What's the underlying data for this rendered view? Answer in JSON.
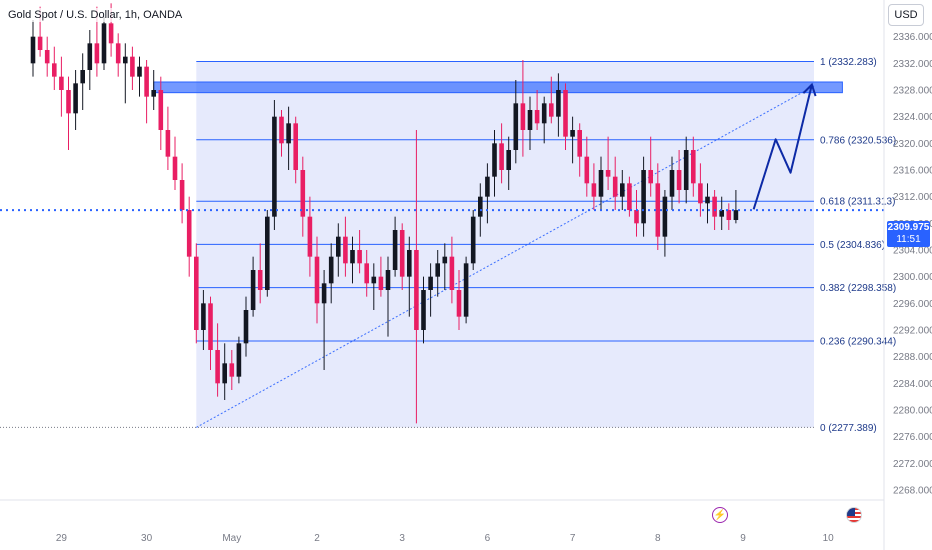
{
  "header": {
    "symbol_title": "Gold Spot / U.S. Dollar, 1h, OANDA"
  },
  "currency_button": {
    "label": "USD"
  },
  "last_price": {
    "price": "2309.975",
    "countdown": "11:51",
    "value": 2309.975
  },
  "icons": {
    "event_bolt": "lightning-bolt-icon",
    "event_flag": "us-flag-icon"
  },
  "colors": {
    "up": "#131722",
    "down": "#e91e63",
    "fib_line": "#2962ff",
    "fib_fill": "#dde3fb",
    "zone": "#2962ff",
    "projection": "#0d2aa6"
  },
  "chart_data": {
    "type": "candlestick",
    "title": "Gold Spot / U.S. Dollar, 1h, OANDA",
    "xlabel": "",
    "ylabel": "",
    "ylim": [
      2266.5,
      2341.5
    ],
    "y_ticks": [
      2268,
      2272,
      2276,
      2280,
      2284,
      2288,
      2292,
      2296,
      2300,
      2304,
      2308,
      2312,
      2316,
      2320,
      2324,
      2328,
      2332,
      2336
    ],
    "x_ticks": [
      {
        "label": "29",
        "index": 4
      },
      {
        "label": "30",
        "index": 16
      },
      {
        "label": "May",
        "index": 28
      },
      {
        "label": "2",
        "index": 40
      },
      {
        "label": "3",
        "index": 52
      },
      {
        "label": "6",
        "index": 64
      },
      {
        "label": "7",
        "index": 76
      },
      {
        "label": "8",
        "index": 88
      },
      {
        "label": "9",
        "index": 100
      },
      {
        "label": "10",
        "index": 112
      }
    ],
    "grid": false,
    "fibonacci": {
      "start_index": 23,
      "end_index": 110,
      "levels": [
        {
          "ratio": "1",
          "price": 2332.283
        },
        {
          "ratio": "0.786",
          "price": 2320.536
        },
        {
          "ratio": "0.618",
          "price": 2311.313
        },
        {
          "ratio": "0.5",
          "price": 2304.836
        },
        {
          "ratio": "0.382",
          "price": 2298.358
        },
        {
          "ratio": "0.236",
          "price": 2290.344
        },
        {
          "ratio": "0",
          "price": 2277.389
        }
      ]
    },
    "resistance_zone": {
      "top": 2329.2,
      "bottom": 2327.6,
      "start_index": 17,
      "end_index": 114
    },
    "trendline": [
      {
        "index": 23,
        "price": 2277.389
      },
      {
        "index": 110,
        "price": 2328.6
      }
    ],
    "projection_path": [
      {
        "index": 101.5,
        "price": 2310.1
      },
      {
        "index": 104.6,
        "price": 2320.6
      },
      {
        "index": 106.7,
        "price": 2315.6
      },
      {
        "index": 109.7,
        "price": 2328.8
      }
    ],
    "candles": [
      [
        2332.0,
        2338.5,
        2330.0,
        2336.0
      ],
      [
        2336.0,
        2340.5,
        2333.0,
        2334.0
      ],
      [
        2334.0,
        2336.0,
        2330.0,
        2332.0
      ],
      [
        2332.0,
        2334.5,
        2328.0,
        2330.0
      ],
      [
        2330.0,
        2333.0,
        2324.0,
        2328.0
      ],
      [
        2328.0,
        2330.0,
        2319.0,
        2324.5
      ],
      [
        2324.5,
        2331.0,
        2322.0,
        2329.0
      ],
      [
        2329.0,
        2333.5,
        2325.0,
        2331.0
      ],
      [
        2331.0,
        2337.0,
        2328.0,
        2335.0
      ],
      [
        2335.0,
        2340.5,
        2330.0,
        2332.0
      ],
      [
        2332.0,
        2339.0,
        2331.0,
        2338.0
      ],
      [
        2338.0,
        2341.0,
        2333.0,
        2335.0
      ],
      [
        2335.0,
        2336.5,
        2330.0,
        2332.0
      ],
      [
        2332.0,
        2335.0,
        2326.0,
        2333.0
      ],
      [
        2333.0,
        2334.5,
        2328.0,
        2330.0
      ],
      [
        2330.0,
        2333.0,
        2327.0,
        2331.5
      ],
      [
        2331.5,
        2332.5,
        2323.0,
        2327.0
      ],
      [
        2327.0,
        2331.0,
        2325.0,
        2328.0
      ],
      [
        2328.0,
        2330.0,
        2319.0,
        2322.0
      ],
      [
        2322.0,
        2325.5,
        2316.0,
        2318.0
      ],
      [
        2318.0,
        2321.0,
        2313.0,
        2314.5
      ],
      [
        2314.5,
        2317.0,
        2308.0,
        2310.0
      ],
      [
        2310.0,
        2312.0,
        2300.0,
        2303.0
      ],
      [
        2303.0,
        2305.0,
        2290.0,
        2292.0
      ],
      [
        2292.0,
        2298.0,
        2289.0,
        2296.0
      ],
      [
        2296.0,
        2297.0,
        2286.0,
        2289.0
      ],
      [
        2289.0,
        2293.0,
        2282.0,
        2284.0
      ],
      [
        2284.0,
        2290.0,
        2281.5,
        2287.0
      ],
      [
        2287.0,
        2289.0,
        2283.0,
        2285.0
      ],
      [
        2285.0,
        2291.0,
        2284.0,
        2290.0
      ],
      [
        2290.0,
        2297.0,
        2288.0,
        2295.0
      ],
      [
        2295.0,
        2303.0,
        2294.0,
        2301.0
      ],
      [
        2301.0,
        2305.0,
        2296.0,
        2298.0
      ],
      [
        2298.0,
        2310.0,
        2297.0,
        2309.0
      ],
      [
        2309.0,
        2326.5,
        2307.0,
        2324.0
      ],
      [
        2324.0,
        2325.0,
        2318.0,
        2320.0
      ],
      [
        2320.0,
        2325.5,
        2316.0,
        2323.0
      ],
      [
        2323.0,
        2324.0,
        2314.0,
        2316.0
      ],
      [
        2316.0,
        2318.0,
        2306.0,
        2309.0
      ],
      [
        2309.0,
        2312.0,
        2300.0,
        2303.0
      ],
      [
        2303.0,
        2306.0,
        2293.0,
        2296.0
      ],
      [
        2296.0,
        2301.0,
        2286.0,
        2299.0
      ],
      [
        2299.0,
        2305.0,
        2296.0,
        2303.0
      ],
      [
        2303.0,
        2308.0,
        2300.0,
        2306.0
      ],
      [
        2306.0,
        2309.0,
        2300.0,
        2302.0
      ],
      [
        2302.0,
        2306.0,
        2299.0,
        2304.0
      ],
      [
        2304.0,
        2307.0,
        2300.5,
        2302.0
      ],
      [
        2302.0,
        2304.0,
        2297.0,
        2299.0
      ],
      [
        2299.0,
        2302.0,
        2295.0,
        2300.0
      ],
      [
        2300.0,
        2303.0,
        2297.0,
        2298.0
      ],
      [
        2298.0,
        2303.0,
        2291.0,
        2301.0
      ],
      [
        2301.0,
        2309.0,
        2300.0,
        2307.0
      ],
      [
        2307.0,
        2308.0,
        2298.0,
        2300.0
      ],
      [
        2300.0,
        2306.0,
        2294.0,
        2304.0
      ],
      [
        2304.0,
        2322.0,
        2278.0,
        2292.0
      ],
      [
        2292.0,
        2300.0,
        2290.0,
        2298.0
      ],
      [
        2298.0,
        2302.0,
        2294.0,
        2300.0
      ],
      [
        2300.0,
        2304.0,
        2297.0,
        2302.0
      ],
      [
        2302.0,
        2305.0,
        2298.0,
        2303.0
      ],
      [
        2303.0,
        2306.0,
        2296.0,
        2298.0
      ],
      [
        2298.0,
        2301.0,
        2292.0,
        2294.0
      ],
      [
        2294.0,
        2303.0,
        2293.0,
        2302.0
      ],
      [
        2302.0,
        2310.0,
        2301.0,
        2309.0
      ],
      [
        2309.0,
        2314.0,
        2306.0,
        2312.0
      ],
      [
        2312.0,
        2317.0,
        2308.0,
        2315.0
      ],
      [
        2315.0,
        2322.0,
        2312.0,
        2320.0
      ],
      [
        2320.0,
        2323.0,
        2314.0,
        2316.0
      ],
      [
        2316.0,
        2321.0,
        2313.0,
        2319.0
      ],
      [
        2319.0,
        2329.5,
        2317.0,
        2326.0
      ],
      [
        2326.0,
        2332.5,
        2318.0,
        2322.0
      ],
      [
        2322.0,
        2327.0,
        2319.0,
        2325.0
      ],
      [
        2325.0,
        2328.0,
        2322.0,
        2323.0
      ],
      [
        2323.0,
        2327.0,
        2320.0,
        2326.0
      ],
      [
        2326.0,
        2330.0,
        2323.0,
        2324.0
      ],
      [
        2324.0,
        2330.5,
        2321.0,
        2328.0
      ],
      [
        2328.0,
        2329.0,
        2319.0,
        2321.0
      ],
      [
        2321.0,
        2324.0,
        2317.0,
        2322.0
      ],
      [
        2322.0,
        2323.0,
        2315.0,
        2318.0
      ],
      [
        2318.0,
        2321.0,
        2312.0,
        2314.0
      ],
      [
        2314.0,
        2317.0,
        2310.0,
        2312.0
      ],
      [
        2312.0,
        2318.0,
        2310.0,
        2316.0
      ],
      [
        2316.0,
        2321.0,
        2313.0,
        2315.0
      ],
      [
        2315.0,
        2318.0,
        2310.0,
        2312.0
      ],
      [
        2312.0,
        2316.0,
        2310.0,
        2314.0
      ],
      [
        2314.0,
        2315.0,
        2309.0,
        2310.0
      ],
      [
        2310.0,
        2313.0,
        2306.0,
        2308.0
      ],
      [
        2308.0,
        2318.0,
        2306.0,
        2316.0
      ],
      [
        2316.0,
        2321.0,
        2312.0,
        2314.0
      ],
      [
        2314.0,
        2317.0,
        2304.0,
        2306.0
      ],
      [
        2306.0,
        2313.0,
        2303.0,
        2312.0
      ],
      [
        2312.0,
        2318.0,
        2310.0,
        2316.0
      ],
      [
        2316.0,
        2319.0,
        2311.0,
        2313.0
      ],
      [
        2313.0,
        2321.0,
        2311.0,
        2319.0
      ],
      [
        2319.0,
        2321.0,
        2312.0,
        2314.0
      ],
      [
        2314.0,
        2317.0,
        2309.0,
        2311.0
      ],
      [
        2311.0,
        2314.0,
        2308.0,
        2312.0
      ],
      [
        2312.0,
        2313.0,
        2307.0,
        2309.0
      ],
      [
        2309.0,
        2312.0,
        2307.0,
        2310.0
      ],
      [
        2310.0,
        2311.0,
        2307.0,
        2308.5
      ],
      [
        2308.5,
        2313.0,
        2308.0,
        2309.975
      ]
    ]
  }
}
